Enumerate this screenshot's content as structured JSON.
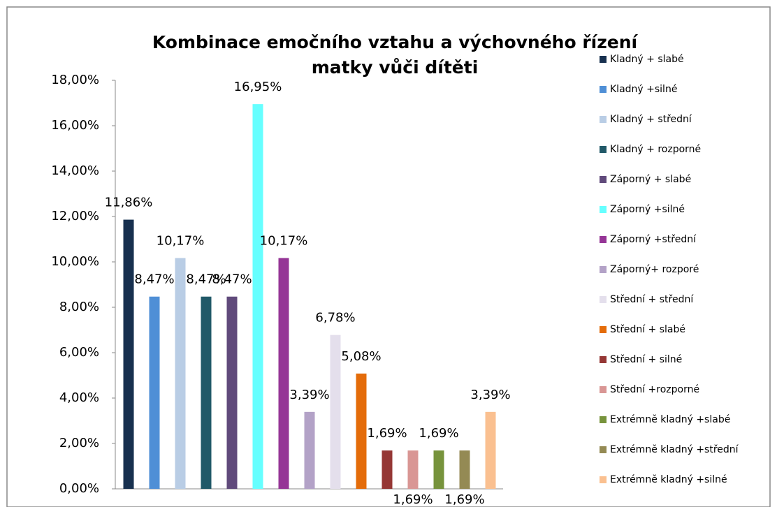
{
  "chart_data": {
    "type": "bar",
    "title": "Kombinace emočního vztahu a výchovného řízení matky vůči dítěti",
    "ylim": [
      0,
      18
    ],
    "yticks": [
      {
        "value": 0,
        "label": "0,00%"
      },
      {
        "value": 2,
        "label": "2,00%"
      },
      {
        "value": 4,
        "label": "4,00%"
      },
      {
        "value": 6,
        "label": "6,00%"
      },
      {
        "value": 8,
        "label": "8,00%"
      },
      {
        "value": 10,
        "label": "10,00%"
      },
      {
        "value": 12,
        "label": "12,00%"
      },
      {
        "value": 14,
        "label": "14,00%"
      },
      {
        "value": 16,
        "label": "16,00%"
      },
      {
        "value": 18,
        "label": "18,00%"
      }
    ],
    "legend": "right",
    "series": [
      {
        "name": "Kladný + slabé",
        "color": "#17304f",
        "values": [
          11.86
        ],
        "value_labels": [
          "11,86%"
        ]
      },
      {
        "name": "Kladný +silné",
        "color": "#4f8fd6",
        "values": [
          8.47
        ],
        "value_labels": [
          "8,47%"
        ]
      },
      {
        "name": "Kladný + střední",
        "color": "#b9cde5",
        "values": [
          10.17
        ],
        "value_labels": [
          "10,17%"
        ]
      },
      {
        "name": "Kladný + rozporné",
        "color": "#215968",
        "values": [
          8.47
        ],
        "value_labels": [
          "8,47%"
        ]
      },
      {
        "name": "Záporný + slabé",
        "color": "#604a7b",
        "values": [
          8.47
        ],
        "value_labels": [
          "8,47%"
        ]
      },
      {
        "name": "Záporný +silné",
        "color": "#66ffff",
        "values": [
          16.95
        ],
        "value_labels": [
          "16,95%"
        ]
      },
      {
        "name": "Záporný +střední",
        "color": "#953596",
        "values": [
          10.17
        ],
        "value_labels": [
          "10,17%"
        ]
      },
      {
        "name": "Záporný+ rozporé",
        "color": "#b3a2c7",
        "values": [
          3.39
        ],
        "value_labels": [
          "3,39%"
        ]
      },
      {
        "name": "Střední + střední",
        "color": "#e4dfec",
        "values": [
          6.78
        ],
        "value_labels": [
          "6,78%"
        ]
      },
      {
        "name": "Střední + slabé",
        "color": "#e46c0a",
        "values": [
          5.08
        ],
        "value_labels": [
          "5,08%"
        ]
      },
      {
        "name": "Střední + silné",
        "color": "#953735",
        "values": [
          1.69
        ],
        "value_labels": [
          "1,69%"
        ]
      },
      {
        "name": "Střední +rozporné",
        "color": "#d99694",
        "values": [
          1.69
        ],
        "value_labels": [
          "1,69%"
        ]
      },
      {
        "name": "Extrémně kladný +slabé",
        "color": "#77933c",
        "values": [
          1.69
        ],
        "value_labels": [
          "1,69%"
        ]
      },
      {
        "name": "Extrémně kladný +střední",
        "color": "#948a54",
        "values": [
          1.69
        ],
        "value_labels": [
          "1,69%"
        ]
      },
      {
        "name": "Extrémně kladný +silné",
        "color": "#fac090",
        "values": [
          3.39
        ],
        "value_labels": [
          "3,39%"
        ]
      }
    ]
  }
}
